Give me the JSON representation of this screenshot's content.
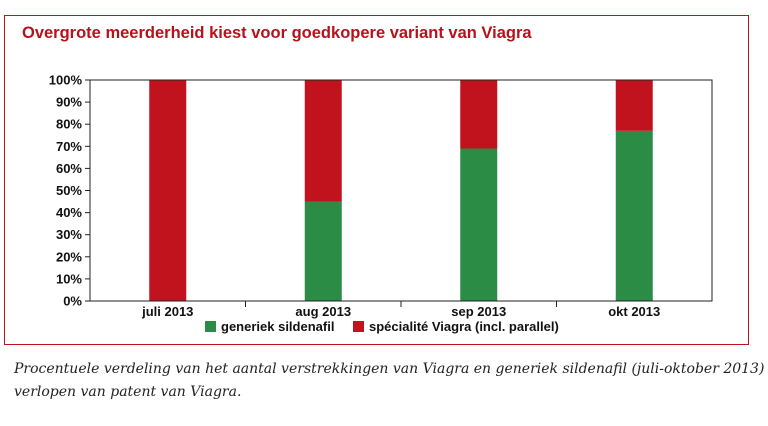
{
  "chart_data": {
    "type": "bar",
    "stacked": true,
    "title": "Overgrote meerderheid kiest voor goedkopere variant van Viagra",
    "categories": [
      "juli 2013",
      "aug 2013",
      "sep 2013",
      "okt 2013"
    ],
    "series": [
      {
        "name": "generiek sildenafil",
        "color": "#2a8c45",
        "values": [
          0,
          45,
          69,
          77
        ]
      },
      {
        "name": "spécialité Viagra (incl. parallel)",
        "color": "#c0131d",
        "values": [
          100,
          55,
          31,
          23
        ]
      }
    ],
    "y_ticks": [
      "0%",
      "10%",
      "20%",
      "30%",
      "40%",
      "50%",
      "60%",
      "70%",
      "80%",
      "90%",
      "100%"
    ],
    "ylim": [
      0,
      100
    ],
    "grid": false,
    "legend_position": "bottom"
  },
  "caption": {
    "line1": "Procentuele verdeling van het aantal verstrekkingen van Viagra en generiek sildenafil (juli-oktober 2013) na",
    "line2": "verlopen van patent van Viagra."
  }
}
